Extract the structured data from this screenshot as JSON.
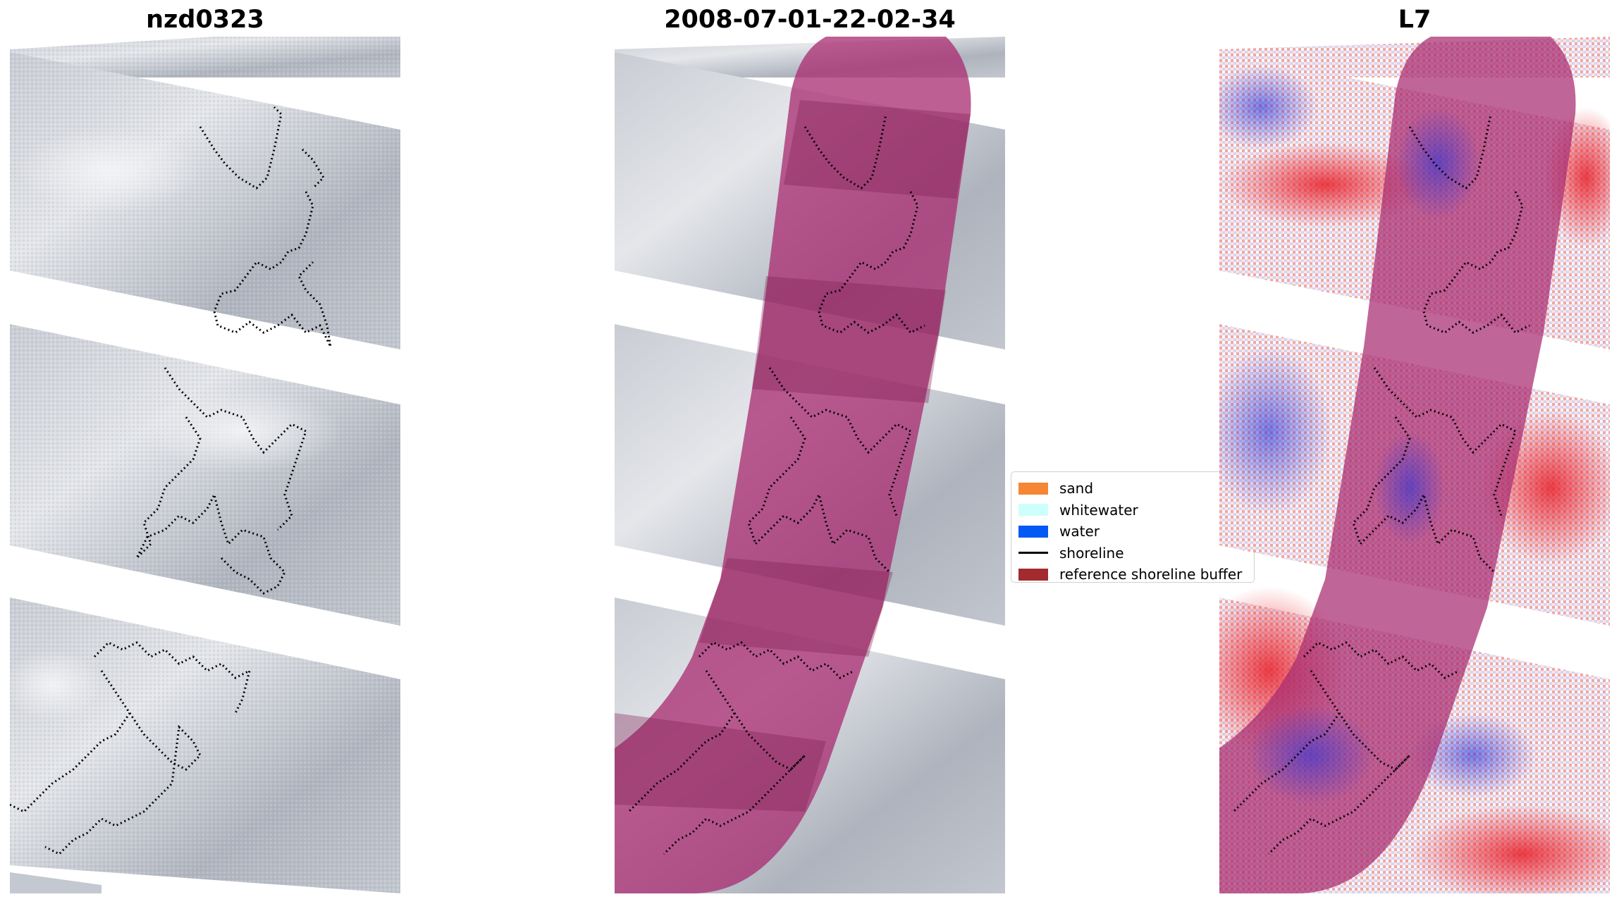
{
  "panels": {
    "left_title": "nzd0323",
    "center_title": "2008-07-01-22-02-34",
    "right_title": "L7"
  },
  "legend": {
    "items": [
      {
        "label": "sand",
        "color": "#f58634",
        "kind": "patch"
      },
      {
        "label": "whitewater",
        "color": "#cdfffc",
        "kind": "patch"
      },
      {
        "label": "water",
        "color": "#0458f4",
        "kind": "patch"
      },
      {
        "label": "shoreline",
        "color": "#000000",
        "kind": "line"
      },
      {
        "label": "reference shoreline buffer",
        "color": "#a32b2e",
        "kind": "patch"
      }
    ]
  },
  "colors": {
    "background": "#ffffff",
    "buffer_overlay": "#a8296f",
    "cloud_gray": "#b9bdc6",
    "index_red": "#e8202a",
    "index_blue": "#2a32d8"
  }
}
